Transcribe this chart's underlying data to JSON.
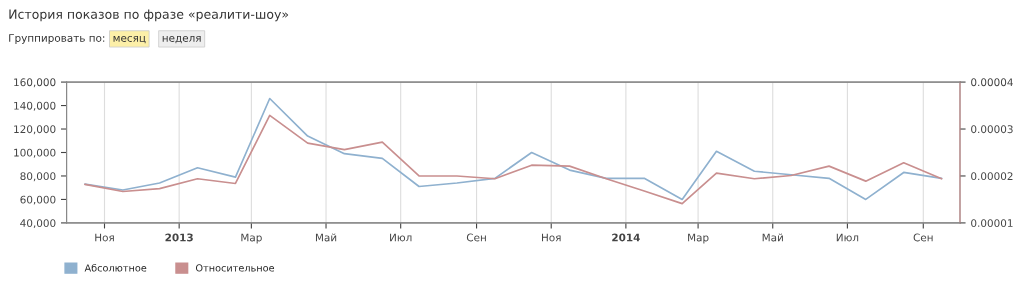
{
  "chart_data": {
    "type": "line",
    "title": "История показов по фразе «реалити-шоу»",
    "annotations": [
      "Группировать по:",
      "месяц",
      "неделя"
    ],
    "x": [
      "2012-10-16",
      "2012-11-16",
      "2012-12-16",
      "2013-01-16",
      "2013-02-16",
      "2013-03-16",
      "2013-04-16",
      "2013-05-16",
      "2013-06-16",
      "2013-07-16",
      "2013-08-16",
      "2013-09-16",
      "2013-10-16",
      "2013-11-16",
      "2013-12-16",
      "2014-01-16",
      "2014-02-16",
      "2014-03-16",
      "2014-04-16",
      "2014-05-16",
      "2014-06-16",
      "2014-07-16",
      "2014-08-16",
      "2014-09-16"
    ],
    "series": [
      {
        "name": "Абсолютное",
        "color": "#8fb1cf",
        "values": [
          73000,
          68000,
          74000,
          87000,
          79000,
          146000,
          114000,
          99000,
          95000,
          71000,
          74000,
          78000,
          100000,
          85000,
          78000,
          78000,
          60000,
          101000,
          84000,
          81000,
          78000,
          60000,
          83000,
          78000
        ]
      },
      {
        "name": "Относительное",
        "color": "#c98f8f",
        "axis": "y2",
        "values": [
          1.82e-05,
          1.67e-05,
          1.73e-05,
          1.94e-05,
          1.84e-05,
          3.29e-05,
          2.7e-05,
          2.56e-05,
          2.72e-05,
          2e-05,
          2e-05,
          1.94e-05,
          2.23e-05,
          2.21e-05,
          1.94e-05,
          1.68e-05,
          1.41e-05,
          2.06e-05,
          1.94e-05,
          2.01e-05,
          2.21e-05,
          1.89e-05,
          2.28e-05,
          1.94e-05
        ]
      }
    ],
    "xlim": [
      "2012-10-01",
      "2014-10-01"
    ],
    "xticks": [
      {
        "value": "2012-11-01",
        "label": "Ноя"
      },
      {
        "value": "2013-01-01",
        "label": "2013"
      },
      {
        "value": "2013-03-01",
        "label": "Мар"
      },
      {
        "value": "2013-05-01",
        "label": "Май"
      },
      {
        "value": "2013-07-01",
        "label": "Июл"
      },
      {
        "value": "2013-09-01",
        "label": "Сен"
      },
      {
        "value": "2013-11-01",
        "label": "Ноя"
      },
      {
        "value": "2014-01-01",
        "label": "2014"
      },
      {
        "value": "2014-03-01",
        "label": "Мар"
      },
      {
        "value": "2014-05-01",
        "label": "Май"
      },
      {
        "value": "2014-07-01",
        "label": "Июл"
      },
      {
        "value": "2014-09-01",
        "label": "Сен"
      }
    ],
    "ylim": [
      40000,
      160000
    ],
    "yticks": [
      {
        "value": 40000,
        "label": "40,000"
      },
      {
        "value": 60000,
        "label": "60,000"
      },
      {
        "value": 80000,
        "label": "80,000"
      },
      {
        "value": 100000,
        "label": "100,000"
      },
      {
        "value": 120000,
        "label": "120,000"
      },
      {
        "value": 140000,
        "label": "140,000"
      },
      {
        "value": 160000,
        "label": "160,000"
      }
    ],
    "y2lim": [
      1e-05,
      4e-05
    ],
    "y2ticks": [
      {
        "value": 1e-05,
        "label": "0.00001"
      },
      {
        "value": 2e-05,
        "label": "0.00002"
      },
      {
        "value": 3e-05,
        "label": "0.00003"
      },
      {
        "value": 4e-05,
        "label": "0.00004"
      }
    ],
    "grid": "x",
    "legend": "bottom left",
    "marker": "none",
    "line_style": "solid"
  }
}
